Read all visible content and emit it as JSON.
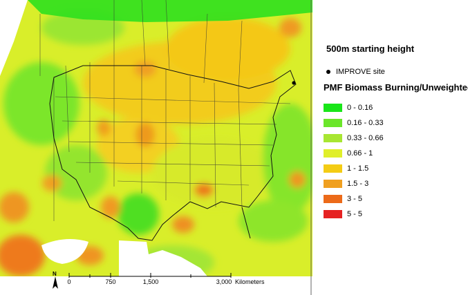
{
  "map": {
    "title": "500m starting height",
    "site_label": "IMPROVE site",
    "legend_title": "PMF Biomass Burning/Unweighted",
    "legend": [
      {
        "label": "0 - 0.16",
        "color": "#19e619"
      },
      {
        "label": "0.16 - 0.33",
        "color": "#6be62a"
      },
      {
        "label": "0.33 - 0.66",
        "color": "#a8e632"
      },
      {
        "label": "0.66 - 1",
        "color": "#e0ef2a"
      },
      {
        "label": "1 - 1.5",
        "color": "#f4cc14"
      },
      {
        "label": "1.5 - 3",
        "color": "#f0a020"
      },
      {
        "label": "3 - 5",
        "color": "#ec6a19"
      },
      {
        "label": "5 - 5",
        "color": "#e62222"
      }
    ],
    "north_letter": "N",
    "scale": {
      "ticks": [
        "0",
        "750",
        "1,500",
        "3,000"
      ],
      "unit": "Kilometers"
    }
  }
}
